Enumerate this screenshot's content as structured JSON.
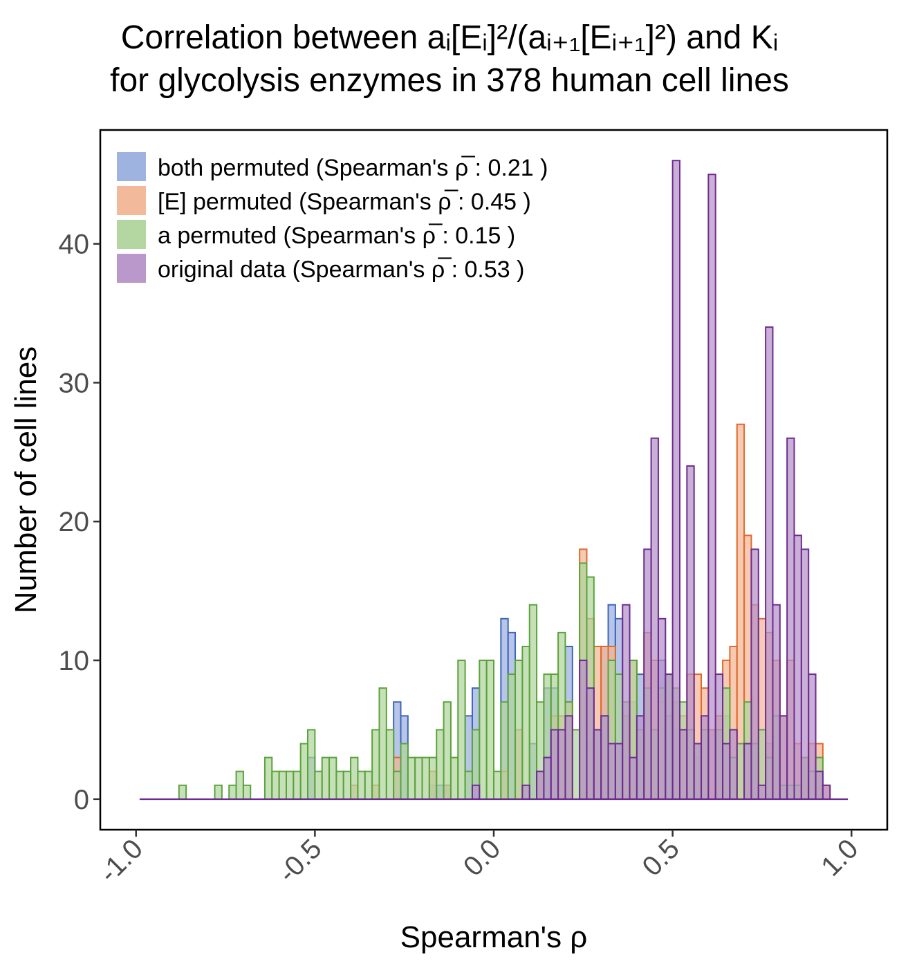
{
  "chart_data": {
    "type": "bar",
    "title": [
      "Correlation between aᵢ[Eᵢ]²/(aᵢ₊₁[Eᵢ₊₁]²) and Kᵢ",
      "for glycolysis enzymes in 378 human cell lines"
    ],
    "xlabel": "Spearman's  ρ",
    "ylabel": "Number of cell lines",
    "xlim": [
      -1.1,
      1.1
    ],
    "ylim": [
      -2.2,
      48.2
    ],
    "xticks": [
      -1.0,
      -0.5,
      0.0,
      0.5,
      1.0
    ],
    "xtick_labels": [
      "-1.0",
      "-0.5",
      "0.0",
      "0.5",
      "1.0"
    ],
    "yticks": [
      0,
      10,
      20,
      30,
      40
    ],
    "ytick_labels": [
      "0",
      "10",
      "20",
      "30",
      "40"
    ],
    "grid": false,
    "legend_position": "top-left",
    "bin_width": 0.02,
    "series": [
      {
        "name": "both permuted (Spearman's  ρ̅ : 0.21 )",
        "fill": "#9aafdf",
        "stroke": "#3f65b8",
        "bins": [
          [
            -0.52,
            3
          ],
          [
            -0.28,
            7
          ],
          [
            -0.26,
            6
          ],
          [
            -0.18,
            1
          ],
          [
            -0.16,
            1
          ],
          [
            -0.14,
            1
          ],
          [
            -0.08,
            6
          ],
          [
            -0.06,
            8
          ],
          [
            0.02,
            13
          ],
          [
            0.04,
            12
          ],
          [
            0.1,
            4
          ],
          [
            0.14,
            8
          ],
          [
            0.16,
            8
          ],
          [
            0.2,
            11
          ],
          [
            0.26,
            4
          ],
          [
            0.3,
            11
          ],
          [
            0.32,
            14
          ],
          [
            0.34,
            13
          ],
          [
            0.38,
            7
          ],
          [
            0.4,
            9
          ],
          [
            0.46,
            10
          ],
          [
            0.48,
            6
          ],
          [
            0.5,
            5
          ],
          [
            0.56,
            3
          ],
          [
            0.6,
            5
          ],
          [
            0.62,
            5
          ],
          [
            0.64,
            6
          ],
          [
            0.72,
            4
          ],
          [
            0.76,
            4
          ]
        ]
      },
      {
        "name": "[E] permuted (Spearman's  ρ̅ : 0.45 )",
        "fill": "#f2b596",
        "stroke": "#e06a2a",
        "bins": [
          [
            -0.4,
            1
          ],
          [
            -0.34,
            1
          ],
          [
            -0.28,
            3
          ],
          [
            -0.18,
            2
          ],
          [
            -0.14,
            1
          ],
          [
            0.02,
            2
          ],
          [
            0.06,
            5
          ],
          [
            0.12,
            2
          ],
          [
            0.16,
            6
          ],
          [
            0.18,
            6
          ],
          [
            0.2,
            7
          ],
          [
            0.24,
            18
          ],
          [
            0.26,
            13
          ],
          [
            0.28,
            11
          ],
          [
            0.3,
            11
          ],
          [
            0.32,
            11
          ],
          [
            0.36,
            6
          ],
          [
            0.38,
            10
          ],
          [
            0.42,
            12
          ],
          [
            0.44,
            10
          ],
          [
            0.46,
            7
          ],
          [
            0.5,
            7
          ],
          [
            0.52,
            6
          ],
          [
            0.54,
            9
          ],
          [
            0.56,
            9
          ],
          [
            0.58,
            8
          ],
          [
            0.6,
            5
          ],
          [
            0.62,
            6
          ],
          [
            0.64,
            10
          ],
          [
            0.66,
            11
          ],
          [
            0.68,
            27
          ],
          [
            0.7,
            19
          ],
          [
            0.72,
            14
          ],
          [
            0.74,
            13
          ],
          [
            0.76,
            12
          ],
          [
            0.78,
            10
          ],
          [
            0.8,
            6
          ],
          [
            0.82,
            10
          ],
          [
            0.84,
            4
          ],
          [
            0.86,
            3
          ],
          [
            0.88,
            4
          ],
          [
            0.9,
            4
          ],
          [
            0.92,
            1
          ]
        ]
      },
      {
        "name": "a permuted (Spearman's  ρ̅ : 0.15 )",
        "fill": "#b0d49c",
        "stroke": "#5aa33c",
        "bins": [
          [
            -0.88,
            1
          ],
          [
            -0.78,
            1
          ],
          [
            -0.74,
            1
          ],
          [
            -0.72,
            2
          ],
          [
            -0.7,
            1
          ],
          [
            -0.64,
            3
          ],
          [
            -0.62,
            2
          ],
          [
            -0.6,
            2
          ],
          [
            -0.58,
            2
          ],
          [
            -0.56,
            2
          ],
          [
            -0.54,
            4
          ],
          [
            -0.52,
            5
          ],
          [
            -0.5,
            2
          ],
          [
            -0.48,
            3
          ],
          [
            -0.46,
            3
          ],
          [
            -0.44,
            2
          ],
          [
            -0.42,
            2
          ],
          [
            -0.4,
            3
          ],
          [
            -0.38,
            2
          ],
          [
            -0.36,
            2
          ],
          [
            -0.34,
            5
          ],
          [
            -0.32,
            8
          ],
          [
            -0.3,
            5
          ],
          [
            -0.28,
            2
          ],
          [
            -0.26,
            4
          ],
          [
            -0.24,
            3
          ],
          [
            -0.22,
            3
          ],
          [
            -0.2,
            3
          ],
          [
            -0.18,
            3
          ],
          [
            -0.16,
            5
          ],
          [
            -0.14,
            7
          ],
          [
            -0.12,
            3
          ],
          [
            -0.1,
            10
          ],
          [
            -0.08,
            2
          ],
          [
            -0.06,
            5
          ],
          [
            -0.04,
            10
          ],
          [
            -0.02,
            10
          ],
          [
            0.0,
            2
          ],
          [
            0.02,
            7
          ],
          [
            0.04,
            9
          ],
          [
            0.06,
            10
          ],
          [
            0.08,
            11
          ],
          [
            0.1,
            14
          ],
          [
            0.12,
            7
          ],
          [
            0.14,
            9
          ],
          [
            0.16,
            9
          ],
          [
            0.18,
            12
          ],
          [
            0.2,
            7
          ],
          [
            0.22,
            5
          ],
          [
            0.24,
            17
          ],
          [
            0.26,
            16
          ],
          [
            0.28,
            5
          ],
          [
            0.3,
            6
          ],
          [
            0.32,
            10
          ],
          [
            0.34,
            9
          ],
          [
            0.36,
            7
          ],
          [
            0.38,
            10
          ],
          [
            0.4,
            5
          ],
          [
            0.42,
            8
          ],
          [
            0.44,
            5
          ],
          [
            0.46,
            8
          ],
          [
            0.48,
            9
          ],
          [
            0.5,
            8
          ],
          [
            0.52,
            7
          ],
          [
            0.54,
            5
          ],
          [
            0.56,
            4
          ],
          [
            0.58,
            5
          ],
          [
            0.62,
            5
          ],
          [
            0.64,
            8
          ],
          [
            0.66,
            3
          ],
          [
            0.68,
            4
          ],
          [
            0.7,
            7
          ],
          [
            0.72,
            4
          ],
          [
            0.74,
            5
          ],
          [
            0.76,
            3
          ],
          [
            0.78,
            6
          ],
          [
            0.8,
            1
          ],
          [
            0.82,
            1
          ],
          [
            0.84,
            1
          ],
          [
            0.86,
            3
          ],
          [
            0.88,
            2
          ],
          [
            0.9,
            3
          ]
        ]
      },
      {
        "name": "original data (Spearman's  ρ̅ : 0.53 )",
        "fill": "#b692c8",
        "stroke": "#6d2b92",
        "bins": [
          [
            -0.06,
            1
          ],
          [
            0.08,
            1
          ],
          [
            0.12,
            2
          ],
          [
            0.14,
            3
          ],
          [
            0.16,
            5
          ],
          [
            0.18,
            5
          ],
          [
            0.2,
            6
          ],
          [
            0.24,
            10
          ],
          [
            0.26,
            8
          ],
          [
            0.28,
            5
          ],
          [
            0.3,
            6
          ],
          [
            0.32,
            4
          ],
          [
            0.34,
            4
          ],
          [
            0.36,
            14
          ],
          [
            0.38,
            3
          ],
          [
            0.4,
            6
          ],
          [
            0.42,
            18
          ],
          [
            0.44,
            26
          ],
          [
            0.46,
            13
          ],
          [
            0.48,
            9
          ],
          [
            0.5,
            46
          ],
          [
            0.52,
            5
          ],
          [
            0.54,
            24
          ],
          [
            0.56,
            4
          ],
          [
            0.58,
            6
          ],
          [
            0.6,
            45
          ],
          [
            0.62,
            9
          ],
          [
            0.64,
            4
          ],
          [
            0.66,
            5
          ],
          [
            0.7,
            4
          ],
          [
            0.72,
            18
          ],
          [
            0.74,
            1
          ],
          [
            0.76,
            34
          ],
          [
            0.78,
            14
          ],
          [
            0.8,
            6
          ],
          [
            0.82,
            26
          ],
          [
            0.84,
            19
          ],
          [
            0.86,
            18
          ],
          [
            0.88,
            9
          ],
          [
            0.9,
            2
          ],
          [
            0.92,
            1
          ]
        ]
      }
    ]
  }
}
